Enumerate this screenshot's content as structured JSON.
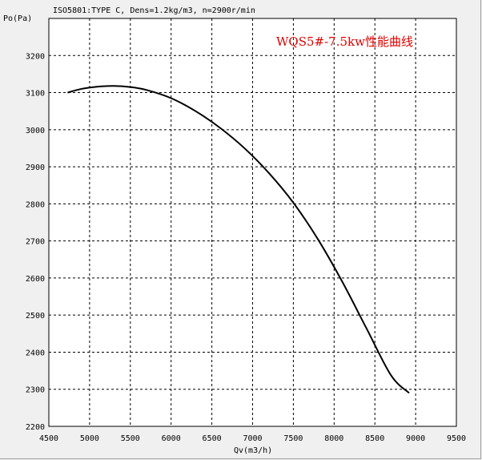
{
  "header": {
    "info_text": "ISO5801:TYPE C, Dens=1.2kg/m3, n=2900r/min"
  },
  "colors": {
    "background": "#f0f0f0",
    "plot_background": "#ffffff",
    "curve": "#000000",
    "title": "#e00000"
  },
  "chart_data": {
    "type": "line",
    "title": "WQS5#-7.5kw性能曲线",
    "xlabel": "Qv(m3/h)",
    "ylabel": "Po(Pa)",
    "xlim": [
      4500,
      9500
    ],
    "ylim": [
      2200,
      3300
    ],
    "x_ticks": [
      4500,
      5000,
      5500,
      6000,
      6500,
      7000,
      7500,
      8000,
      8500,
      9000,
      9500
    ],
    "y_ticks": [
      2200,
      2300,
      2400,
      2500,
      2600,
      2700,
      2800,
      2900,
      3000,
      3100,
      3200
    ],
    "x_tick_labels": [
      "4500",
      "5000",
      "5500",
      "6000",
      "6500",
      "7000",
      "7500",
      "8000",
      "8500",
      "9000",
      "9500"
    ],
    "y_tick_labels": [
      "2200",
      "2300",
      "2400",
      "2500",
      "2600",
      "2700",
      "2800",
      "2900",
      "3000",
      "3100",
      "3200"
    ],
    "grid": true,
    "series": [
      {
        "x": [
          4730,
          4900,
          5100,
          5300,
          5500,
          5700,
          6000,
          6300,
          6600,
          6900,
          7200,
          7500,
          7800,
          8100,
          8400,
          8700,
          8920
        ],
        "y": [
          3100,
          3110,
          3116,
          3118,
          3115,
          3107,
          3085,
          3050,
          3005,
          2950,
          2883,
          2803,
          2705,
          2590,
          2463,
          2337,
          2290
        ]
      }
    ]
  }
}
